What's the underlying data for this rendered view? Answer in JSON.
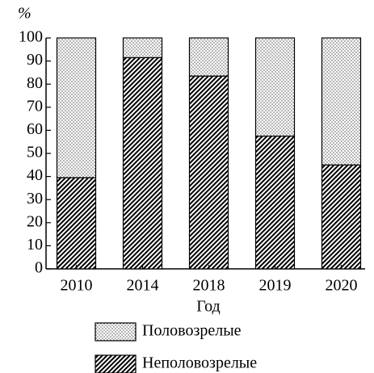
{
  "chart_data": {
    "type": "stacked_bar",
    "y_label": "%",
    "x_label": "Год",
    "categories": [
      "2010",
      "2014",
      "2018",
      "2019",
      "2020"
    ],
    "series": [
      {
        "name": "Неполовозрелые",
        "color": "#000000",
        "pattern": "hatch",
        "values": [
          39.5,
          91.5,
          83.5,
          57.5,
          45
        ]
      },
      {
        "name": "Половозрелые",
        "color": "#000000",
        "pattern": "dots",
        "values": [
          60.5,
          8.5,
          16.5,
          42.5,
          55
        ]
      }
    ],
    "ylim": [
      0,
      100
    ],
    "yticks": [
      0,
      10,
      20,
      30,
      40,
      50,
      60,
      70,
      80,
      90,
      100
    ]
  }
}
